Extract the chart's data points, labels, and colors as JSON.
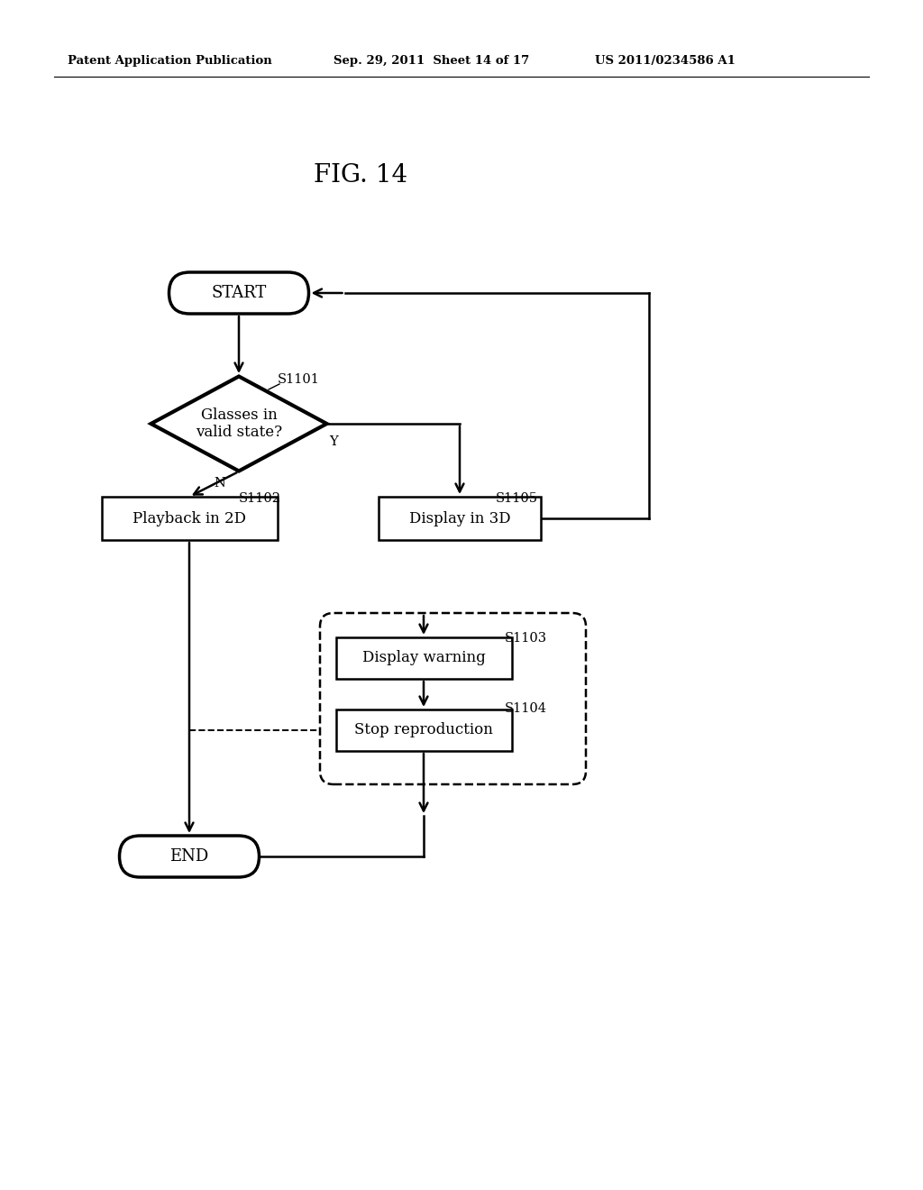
{
  "bg_color": "#ffffff",
  "title_text": "FIG. 14",
  "header_left": "Patent Application Publication",
  "header_mid": "Sep. 29, 2011  Sheet 14 of 17",
  "header_right": "US 2011/0234586 A1",
  "fig_width": 10.24,
  "fig_height": 13.2
}
